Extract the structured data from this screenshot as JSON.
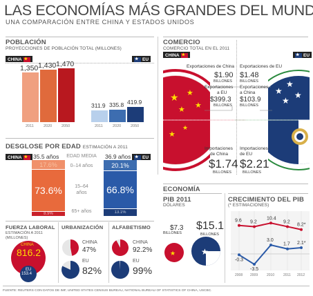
{
  "title": "LAS ECONOMÍAS MÁS GRANDES DEL MUNDO",
  "subtitle": "UNA COMPARACIÓN ENTRE CHINA Y ESTADOS UNIDOS",
  "tags": {
    "china": "CHINA",
    "us": "EU"
  },
  "poblacion": {
    "title": "POBLACIÓN",
    "subtitle": "PROYECCIONES DE POBLACIÓN TOTAL (MILLONES)",
    "years": [
      "2011",
      "2020",
      "2050"
    ],
    "china": [
      "1,350",
      "1,430",
      "1,470"
    ],
    "us": [
      "311.9",
      "335.8",
      "419.9"
    ],
    "chart_data": {
      "type": "bar",
      "categories": [
        "2011",
        "2020",
        "2050"
      ],
      "series": [
        {
          "name": "CHINA",
          "values": [
            1350,
            1430,
            1470
          ]
        },
        {
          "name": "EU",
          "values": [
            311.9,
            335.8,
            419.9
          ]
        }
      ]
    }
  },
  "comercio": {
    "title": "COMERCIO",
    "subtitle": "COMERCIO TOTAL EN EL 2011",
    "china_exports_label": "Exportaciones de China",
    "china_exports_value": "$1.90",
    "china_exports_unit": "BILLONES",
    "china_to_us_label_1": "Exportaciones",
    "china_to_us_label_2": "a EU",
    "china_to_us_value": "$399.3",
    "china_to_us_unit": "BILLONES",
    "china_imports_label_1": "Importaciones",
    "china_imports_label_2": "de China",
    "china_imports_value": "$1.74",
    "china_imports_unit": "BILLONES",
    "us_exports_label": "Exportaciones de EU",
    "us_exports_value": "$1.48",
    "us_exports_unit": "BILLONES",
    "us_to_china_label_1": "Exportaciones",
    "us_to_china_label_2": "a China",
    "us_to_china_value": "$103.9",
    "us_to_china_unit": "BILLONES",
    "us_imports_label_1": "Importaciones",
    "us_imports_label_2": "de EU",
    "us_imports_value": "$2.21",
    "us_imports_unit": "BILLONES"
  },
  "edad": {
    "title": "DESGLOSE POR EDAD",
    "subtitle": "ESTIMACIÓN A 2011",
    "china_median": "35.5 años",
    "us_median": "36.9 años",
    "median_label": "EDAD MEDIA",
    "band1": "0–14 años",
    "band2_1": "15–64",
    "band2_2": "años",
    "band3": "65+ años",
    "china": [
      "17.6%",
      "73.6%",
      "8.9%"
    ],
    "us": [
      "20.1%",
      "66.8%",
      "13.1%"
    ],
    "chart_data": {
      "type": "bar",
      "categories": [
        "0–14 años",
        "15–64 años",
        "65+ años"
      ],
      "series": [
        {
          "name": "CHINA",
          "values": [
            17.6,
            73.6,
            8.9
          ]
        },
        {
          "name": "EU",
          "values": [
            20.1,
            66.8,
            13.1
          ]
        }
      ]
    }
  },
  "economia": {
    "title": "ECONOMÍA",
    "pib_title": "PIB 2011",
    "pib_sub": "DÓLARES",
    "china_pib": "$7.3",
    "china_pib_unit": "BILLONES",
    "us_pib": "$15.1",
    "us_pib_unit": "BILLONES"
  },
  "crecimiento": {
    "title": "CRECIMIENTO DEL PIB",
    "subtitle": "(* ESTIMACIONES)",
    "years": [
      "2008",
      "2009",
      "2010",
      "2011",
      "2012"
    ],
    "china": [
      "9.6",
      "9.2",
      "10.4",
      "9.2",
      "8.2*"
    ],
    "us": [
      "-0.3",
      "-3.5",
      "3.0",
      "1.7",
      "2.1*"
    ],
    "colors": {
      "china": "#c8102e",
      "us": "#2a5aa8"
    },
    "chart_data": {
      "type": "line",
      "x": [
        "2008",
        "2009",
        "2010",
        "2011",
        "2012"
      ],
      "series": [
        {
          "name": "CHINA",
          "values": [
            9.6,
            9.2,
            10.4,
            9.2,
            8.2
          ]
        },
        {
          "name": "EU",
          "values": [
            -0.3,
            -3.5,
            3.0,
            1.7,
            2.1
          ]
        }
      ]
    }
  },
  "fuerza": {
    "title": "FUERZA LABORAL",
    "sub1": "ESTIMACIÓN A 2011",
    "sub2": "(MILLONES)",
    "china_label": "CHINA",
    "china_value": "816.2",
    "us_label": "EU",
    "us_value": "153.4"
  },
  "urbanizacion": {
    "title": "URBANIZACIÓN",
    "china_label": "CHINA",
    "china_value": "47%",
    "us_label": "EU",
    "us_value": "82%"
  },
  "alfabetismo": {
    "title": "ALFABETISMO",
    "china_label": "CHINA",
    "china_value": "92.2%",
    "us_label": "EU",
    "us_value": "99%"
  },
  "source": "FUENTE: REUTERS CON DATOS DE IMF, UNITED STATES CENSUS BUREAU, NATIONAL BUREAU OF STATISTICS OF CHINA, USCBC."
}
